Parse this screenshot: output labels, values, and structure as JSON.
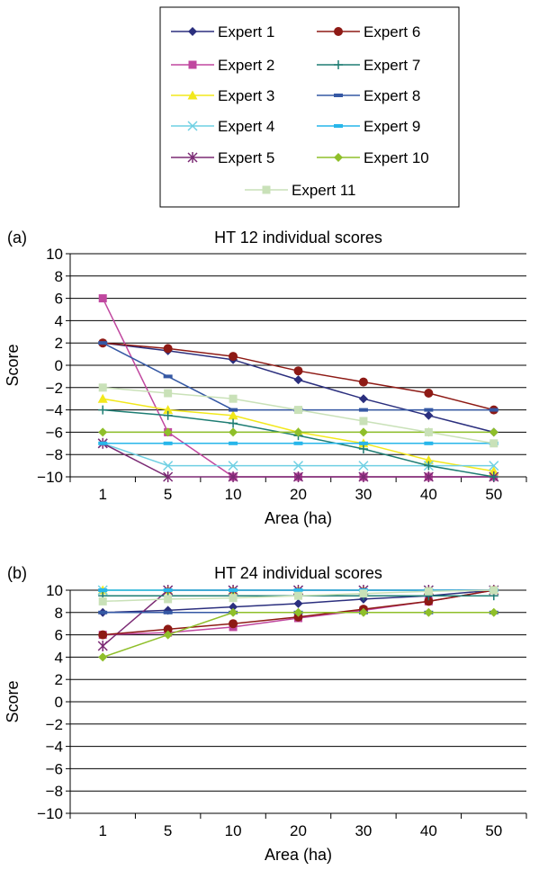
{
  "legend": {
    "entries": [
      {
        "name": "Expert 1",
        "color": "#2b2f7e",
        "marker": "diamond"
      },
      {
        "name": "Expert 2",
        "color": "#c0479f",
        "marker": "square"
      },
      {
        "name": "Expert 3",
        "color": "#f2e81c",
        "marker": "triangle"
      },
      {
        "name": "Expert 4",
        "color": "#6fd0e3",
        "marker": "x"
      },
      {
        "name": "Expert 5",
        "color": "#7b2a74",
        "marker": "star"
      },
      {
        "name": "Expert 6",
        "color": "#8e1a15",
        "marker": "circle"
      },
      {
        "name": "Expert 7",
        "color": "#1e7d73",
        "marker": "plus"
      },
      {
        "name": "Expert 8",
        "color": "#3558a4",
        "marker": "dash"
      },
      {
        "name": "Expert 9",
        "color": "#27b6ea",
        "marker": "dash"
      },
      {
        "name": "Expert 10",
        "color": "#8fbf2a",
        "marker": "diamond"
      },
      {
        "name": "Expert 11",
        "color": "#c9e1b8",
        "marker": "square"
      }
    ]
  },
  "chart_data": [
    {
      "type": "line",
      "panel_label": "(a)",
      "title": "HT 12 individual scores",
      "xlabel": "Area (ha)",
      "ylabel": "Score",
      "categories": [
        "1",
        "5",
        "10",
        "20",
        "30",
        "40",
        "50"
      ],
      "ylim": [
        -10,
        10
      ],
      "yticks": [
        "10",
        "8",
        "6",
        "4",
        "2",
        "0",
        "−2",
        "−4",
        "−6",
        "−8",
        "−10"
      ],
      "ytick_values": [
        10,
        8,
        6,
        4,
        2,
        0,
        -2,
        -4,
        -6,
        -8,
        -10
      ],
      "grid": true,
      "series": [
        {
          "name": "Expert 1",
          "values": [
            2,
            1.3,
            0.5,
            -1.3,
            -3,
            -4.5,
            -6
          ]
        },
        {
          "name": "Expert 2",
          "values": [
            6,
            -6,
            -10,
            -10,
            -10,
            -10,
            -10
          ]
        },
        {
          "name": "Expert 3",
          "values": [
            -3,
            -4,
            -4.5,
            -6,
            -7,
            -8.5,
            -9.5
          ]
        },
        {
          "name": "Expert 4",
          "values": [
            -7,
            -9,
            -9,
            -9,
            -9,
            -9,
            -9
          ]
        },
        {
          "name": "Expert 5",
          "values": [
            -7,
            -10,
            -10,
            -10,
            -10,
            -10,
            -10
          ]
        },
        {
          "name": "Expert 6",
          "values": [
            2,
            1.5,
            0.8,
            -0.5,
            -1.5,
            -2.5,
            -4
          ]
        },
        {
          "name": "Expert 7",
          "values": [
            -4,
            -4.5,
            -5.2,
            -6.3,
            -7.5,
            -9,
            -10
          ]
        },
        {
          "name": "Expert 8",
          "values": [
            2,
            -1,
            -4,
            -4,
            -4,
            -4,
            -4
          ]
        },
        {
          "name": "Expert 9",
          "values": [
            -7,
            -7,
            -7,
            -7,
            -7,
            -7,
            -7
          ]
        },
        {
          "name": "Expert 10",
          "values": [
            -6,
            -6,
            -6,
            -6,
            -6,
            -6,
            -6
          ]
        },
        {
          "name": "Expert 11",
          "values": [
            -2,
            -2.5,
            -3,
            -4,
            -5,
            -6,
            -7
          ]
        }
      ]
    },
    {
      "type": "line",
      "panel_label": "(b)",
      "title": "HT 24 individual scores",
      "xlabel": "Area (ha)",
      "ylabel": "Score",
      "categories": [
        "1",
        "5",
        "10",
        "20",
        "30",
        "40",
        "50"
      ],
      "ylim": [
        -10,
        10
      ],
      "yticks": [
        "10",
        "8",
        "6",
        "4",
        "2",
        "0",
        "−2",
        "−4",
        "−6",
        "−8",
        "−10"
      ],
      "ytick_values": [
        10,
        8,
        6,
        4,
        2,
        0,
        -2,
        -4,
        -6,
        -8,
        -10
      ],
      "grid": true,
      "series": [
        {
          "name": "Expert 1",
          "values": [
            8,
            8.2,
            8.5,
            8.8,
            9.2,
            9.5,
            10
          ]
        },
        {
          "name": "Expert 2",
          "values": [
            6,
            6.2,
            6.7,
            7.5,
            8.2,
            9,
            10
          ]
        },
        {
          "name": "Expert 3",
          "values": [
            10,
            10,
            10,
            10,
            10,
            10,
            10
          ]
        },
        {
          "name": "Expert 4",
          "values": [
            10,
            10,
            10,
            10,
            10,
            10,
            10
          ]
        },
        {
          "name": "Expert 5",
          "values": [
            5,
            10,
            10,
            10,
            10,
            10,
            10
          ]
        },
        {
          "name": "Expert 6",
          "values": [
            6,
            6.5,
            7,
            7.6,
            8.3,
            9,
            10
          ]
        },
        {
          "name": "Expert 7",
          "values": [
            9.5,
            9.5,
            9.5,
            9.5,
            9.5,
            9.5,
            9.5
          ]
        },
        {
          "name": "Expert 8",
          "values": [
            8,
            8,
            8,
            8,
            8,
            8,
            8
          ]
        },
        {
          "name": "Expert 9",
          "values": [
            10,
            10,
            10,
            10,
            10,
            10,
            10
          ]
        },
        {
          "name": "Expert 10",
          "values": [
            4,
            6,
            8,
            8,
            8,
            8,
            8
          ]
        },
        {
          "name": "Expert 11",
          "values": [
            9,
            9.2,
            9.3,
            9.5,
            9.7,
            9.9,
            10
          ]
        }
      ]
    }
  ]
}
